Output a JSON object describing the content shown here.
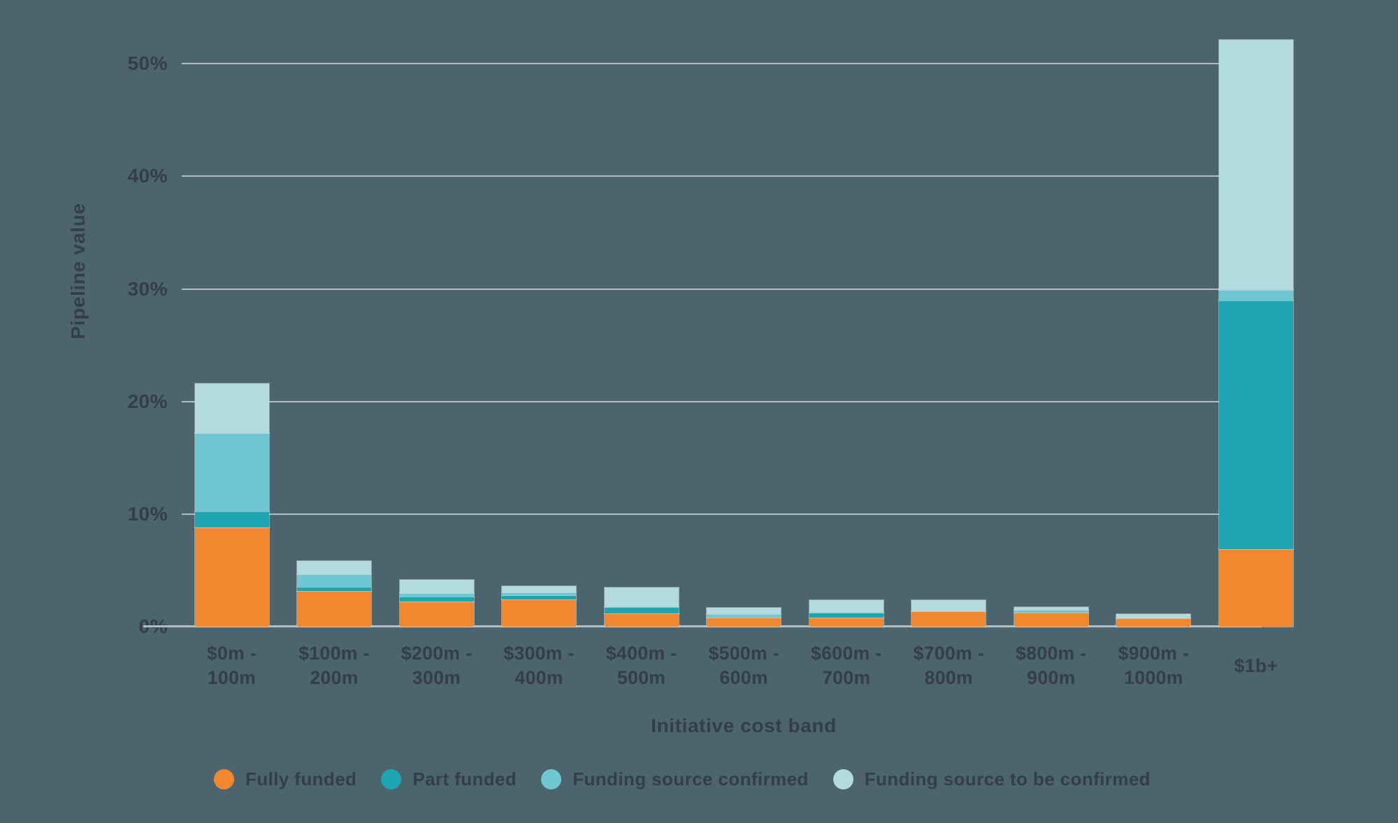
{
  "colors": {
    "background": "#4c646e",
    "gridline": "#b0bdc2",
    "text": "#333e48"
  },
  "chart_data": {
    "type": "bar",
    "stacked": true,
    "title": "",
    "xlabel": "Initiative cost band",
    "ylabel": "Pipeline value",
    "ylim": [
      0,
      52.5
    ],
    "grid": "horizontal",
    "legend_position": "bottom",
    "yticks": [
      0,
      10,
      20,
      30,
      40,
      50
    ],
    "ytick_labels": [
      "0%",
      "10%",
      "20%",
      "30%",
      "40%",
      "50%"
    ],
    "categories": [
      [
        "$0m -",
        "100m"
      ],
      [
        "$100m -",
        "200m"
      ],
      [
        "$200m -",
        "300m"
      ],
      [
        "$300m -",
        "400m"
      ],
      [
        "$400m -",
        "500m"
      ],
      [
        "$500m -",
        "600m"
      ],
      [
        "$600m -",
        "700m"
      ],
      [
        "$700m -",
        "800m"
      ],
      [
        "$800m -",
        "900m"
      ],
      [
        "$900m -",
        "1000m"
      ],
      [
        "$1b+"
      ]
    ],
    "series": [
      {
        "name": "Fully funded",
        "color": "#f1882f",
        "values": [
          8.8,
          3.15,
          2.2,
          2.4,
          1.15,
          0.8,
          0.8,
          1.35,
          1.2,
          0.75,
          6.9
        ]
      },
      {
        "name": "Part funded",
        "color": "#1ea6b0",
        "values": [
          1.4,
          0.4,
          0.45,
          0.35,
          0.6,
          0,
          0.45,
          0,
          0,
          0,
          22.1
        ]
      },
      {
        "name": "Funding source confirmed",
        "color": "#70c7d2",
        "values": [
          7.0,
          1.1,
          0.3,
          0.25,
          0,
          0.3,
          0,
          0,
          0.25,
          0,
          0.9
        ]
      },
      {
        "name": "Funding source to be confirmed",
        "color": "#b3dadf",
        "values": [
          4.4,
          1.2,
          1.2,
          0.6,
          1.7,
          0.55,
          1.1,
          1.0,
          0.3,
          0.35,
          22.2
        ]
      }
    ]
  }
}
